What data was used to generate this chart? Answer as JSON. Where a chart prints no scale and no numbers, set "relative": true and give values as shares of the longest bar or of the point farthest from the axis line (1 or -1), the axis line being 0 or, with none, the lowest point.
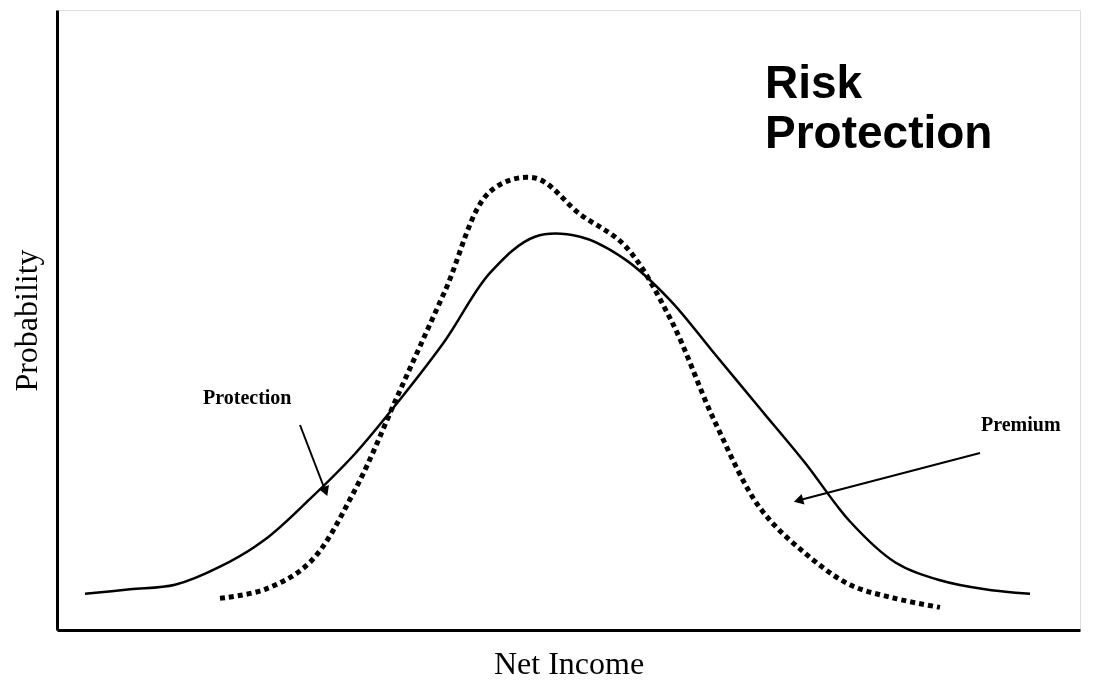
{
  "chart_data": {
    "type": "line",
    "title": "Risk Protection",
    "xlabel": "Net Income",
    "ylabel": "Probability",
    "relative": true,
    "categories": [
      null,
      null,
      null,
      null,
      null,
      null,
      null,
      null,
      null,
      null,
      null,
      null,
      null,
      null,
      null,
      null,
      null,
      null,
      null,
      null,
      null,
      null
    ],
    "series": [
      {
        "color": "#000000",
        "line_style": "solid",
        "values": [
          0.08,
          0.09,
          0.1,
          0.14,
          0.2,
          0.29,
          0.39,
          0.51,
          0.64,
          0.79,
          0.87,
          0.87,
          0.82,
          0.73,
          0.61,
          0.49,
          0.37,
          0.24,
          0.15,
          0.11,
          0.09,
          0.08
        ]
      },
      {
        "color": "#000000",
        "line_style": "dotted",
        "values": [
          null,
          null,
          null,
          0.07,
          0.09,
          0.15,
          0.31,
          0.53,
          0.75,
          0.97,
          1.0,
          0.92,
          0.85,
          0.69,
          0.46,
          0.27,
          0.17,
          0.1,
          0.07,
          0.05,
          null,
          null
        ]
      }
    ],
    "annotations": [
      "Protection",
      "Premium"
    ]
  }
}
